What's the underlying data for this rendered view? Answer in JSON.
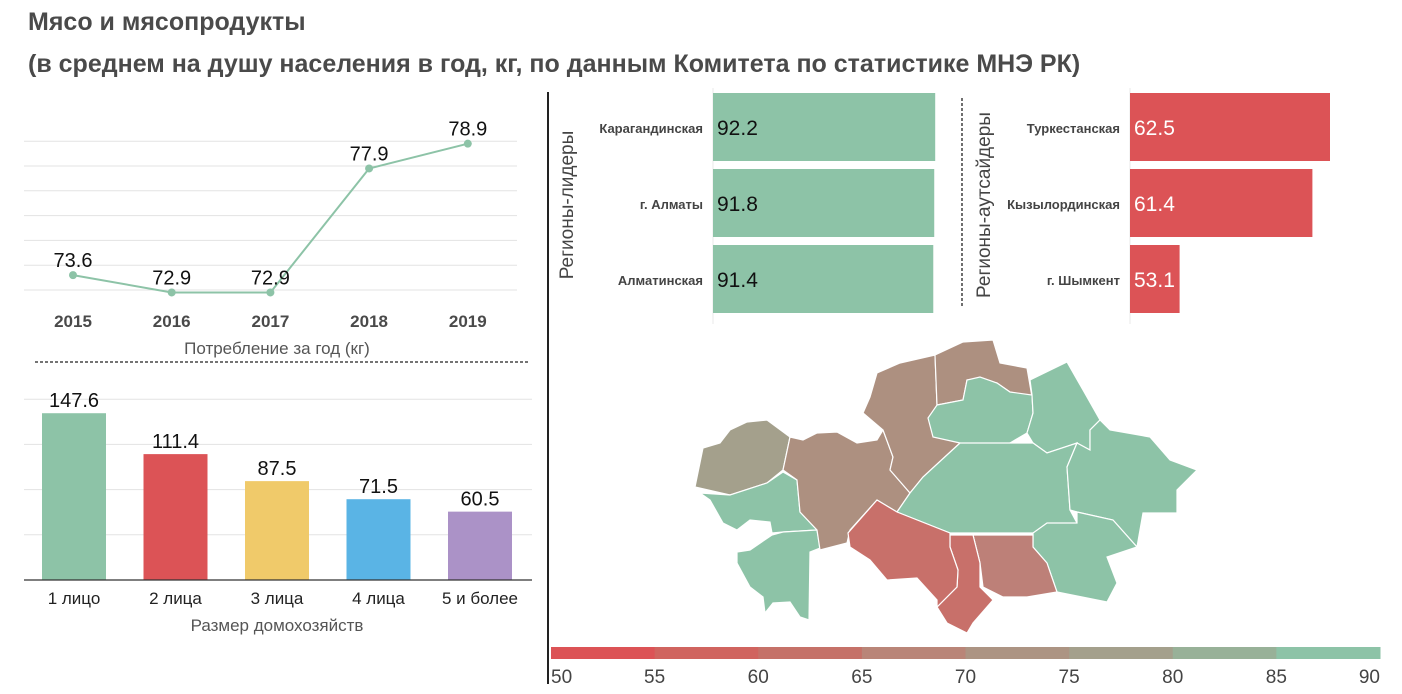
{
  "title": "Мясо и мясопродукты",
  "subtitle": "(в среднем на душу населения в год, кг, по данным Комитета по статистике МНЭ РК)",
  "chart_data": [
    {
      "type": "line",
      "title": "",
      "xlabel": "Потребление за год (кг)",
      "ylabel": "",
      "categories": [
        "2015",
        "2016",
        "2017",
        "2018",
        "2019"
      ],
      "values": [
        73.6,
        72.9,
        72.9,
        77.9,
        78.9
      ],
      "ylim": [
        72.9,
        79
      ],
      "grid": true,
      "color": "#8dc3a7"
    },
    {
      "type": "bar",
      "title": "",
      "xlabel": "Размер домохозяйств",
      "ylabel": "",
      "categories": [
        "1 лицо",
        "2 лица",
        "3 лица",
        "4 лица",
        "5 и более"
      ],
      "values": [
        147.6,
        111.4,
        87.5,
        71.5,
        60.5
      ],
      "colors": [
        "#8dc3a7",
        "#dc5356",
        "#f0ca6a",
        "#5ab4e5",
        "#ab92c7"
      ],
      "ylim": [
        0,
        160
      ],
      "grid": true
    },
    {
      "type": "bar",
      "orientation": "horizontal",
      "title": "Регионы-лидеры",
      "categories": [
        "Карагандинская",
        "г. Алматы",
        "Алматинская"
      ],
      "values": [
        92.2,
        91.8,
        91.4
      ],
      "color": "#8dc3a7"
    },
    {
      "type": "bar",
      "orientation": "horizontal",
      "title": "Регионы-аутсайдеры",
      "categories": [
        "Туркестанская",
        "Кызылординская",
        "г. Шымкент"
      ],
      "values": [
        62.5,
        61.4,
        53.1
      ],
      "xlim": [
        50,
        62.5
      ],
      "color": "#dc5356"
    }
  ],
  "legend": {
    "ticks": [
      "50",
      "55",
      "60",
      "65",
      "70",
      "75",
      "80",
      "85",
      "90"
    ],
    "colors": [
      "#dc5356",
      "#d0645f",
      "#c57168",
      "#b98578",
      "#ac9483",
      "#a4a08c",
      "#98b198",
      "#8dc3a7"
    ]
  },
  "map": {
    "regions": [
      {
        "name": "west-kazakhstan",
        "color": "#a4a08c"
      },
      {
        "name": "atyrau",
        "color": "#8dc3a7"
      },
      {
        "name": "mangystau",
        "color": "#8dc3a7"
      },
      {
        "name": "aktobe",
        "color": "#ad9080"
      },
      {
        "name": "kostanay",
        "color": "#ad9080"
      },
      {
        "name": "north-kazakhstan",
        "color": "#ad9080"
      },
      {
        "name": "akmola",
        "color": "#8dc3a7"
      },
      {
        "name": "pavlodar",
        "color": "#8dc3a7"
      },
      {
        "name": "karaganda",
        "color": "#8dc3a7"
      },
      {
        "name": "east-kazakhstan",
        "color": "#8dc3a7"
      },
      {
        "name": "almaty-region",
        "color": "#8dc3a7"
      },
      {
        "name": "zhambyl",
        "color": "#bd8078"
      },
      {
        "name": "turkestan",
        "color": "#c8706a"
      },
      {
        "name": "kyzylorda",
        "color": "#c8706a"
      }
    ]
  }
}
